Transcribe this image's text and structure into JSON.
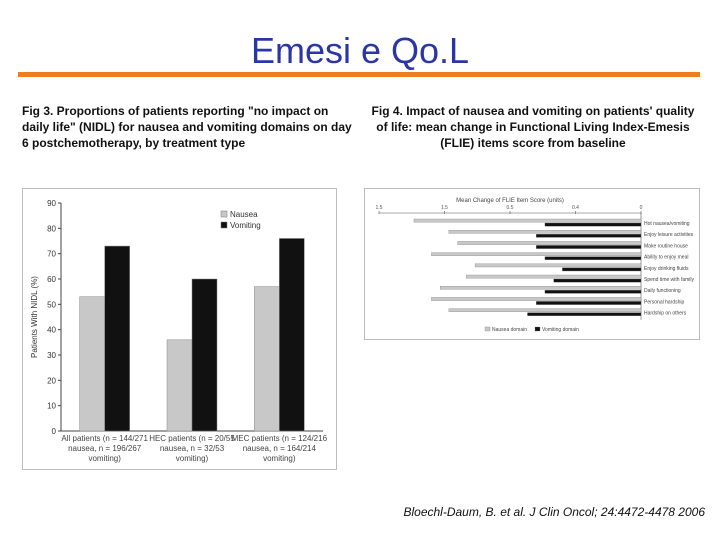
{
  "slide": {
    "title": "Emesi e Qo.L",
    "accent_color": "#f07d1d",
    "title_color": "#2b36a6",
    "fig3_caption": "Fig 3. Proportions of patients reporting \"no impact on daily life\" (NIDL) for nausea and vomiting domains on day 6 postchemotherapy, by treatment type",
    "fig4_caption": "Fig 4. Impact of nausea and vomiting on patients' quality of life: mean change in Functional Living Index-Emesis (FLIE) items score from baseline",
    "citation": "Bloechl-Daum, B. et al. J Clin Oncol; 24:4472-4478 2006"
  },
  "chart_data": [
    {
      "type": "bar",
      "ylabel": "Patients With NIDL (%)",
      "ylim": [
        0,
        90
      ],
      "yticks": [
        0,
        10,
        20,
        30,
        40,
        50,
        60,
        70,
        80,
        90
      ],
      "categories": [
        [
          "All patients (n = 144/271",
          "nausea, n = 196/267",
          "vomiting)"
        ],
        [
          "HEC patients (n = 20/55",
          "nausea, n = 32/53",
          "vomiting)"
        ],
        [
          "MEC patients (n = 124/216",
          "nausea, n = 164/214",
          "vomiting)"
        ]
      ],
      "series": [
        {
          "name": "Nausea",
          "color": "#c8c8c8",
          "values": [
            53,
            36,
            57
          ]
        },
        {
          "name": "Vomiting",
          "color": "#111111",
          "values": [
            73,
            60,
            76
          ]
        }
      ],
      "legend_position": "top-right",
      "grid": false
    },
    {
      "type": "bar",
      "orientation": "horizontal",
      "title": "Mean Change of FLIE Item Score (units)",
      "xlim": [
        -1.5,
        0
      ],
      "xticks": [
        "1.5",
        "1.5",
        "0.5",
        "0.4",
        "0"
      ],
      "categories": [
        "Hot nausea/vomiting",
        "Enjoy leisure activities",
        "Make routine house",
        "Ability to enjoy meal",
        "Enjoy drinking fluids",
        "Spend time with family",
        "Daily functioning",
        "Personal hardship",
        "Hardship on others"
      ],
      "series": [
        {
          "name": "Nausea domain",
          "color": "#c8c8c8",
          "values": [
            -1.3,
            -1.1,
            -1.05,
            -1.2,
            -0.95,
            -1.0,
            -1.15,
            -1.2,
            -1.1
          ]
        },
        {
          "name": "Vomiting domain",
          "color": "#111111",
          "values": [
            -0.55,
            -0.6,
            -0.6,
            -0.55,
            -0.45,
            -0.5,
            -0.55,
            -0.6,
            -0.65
          ]
        }
      ],
      "legend_position": "bottom",
      "grid": false
    }
  ]
}
